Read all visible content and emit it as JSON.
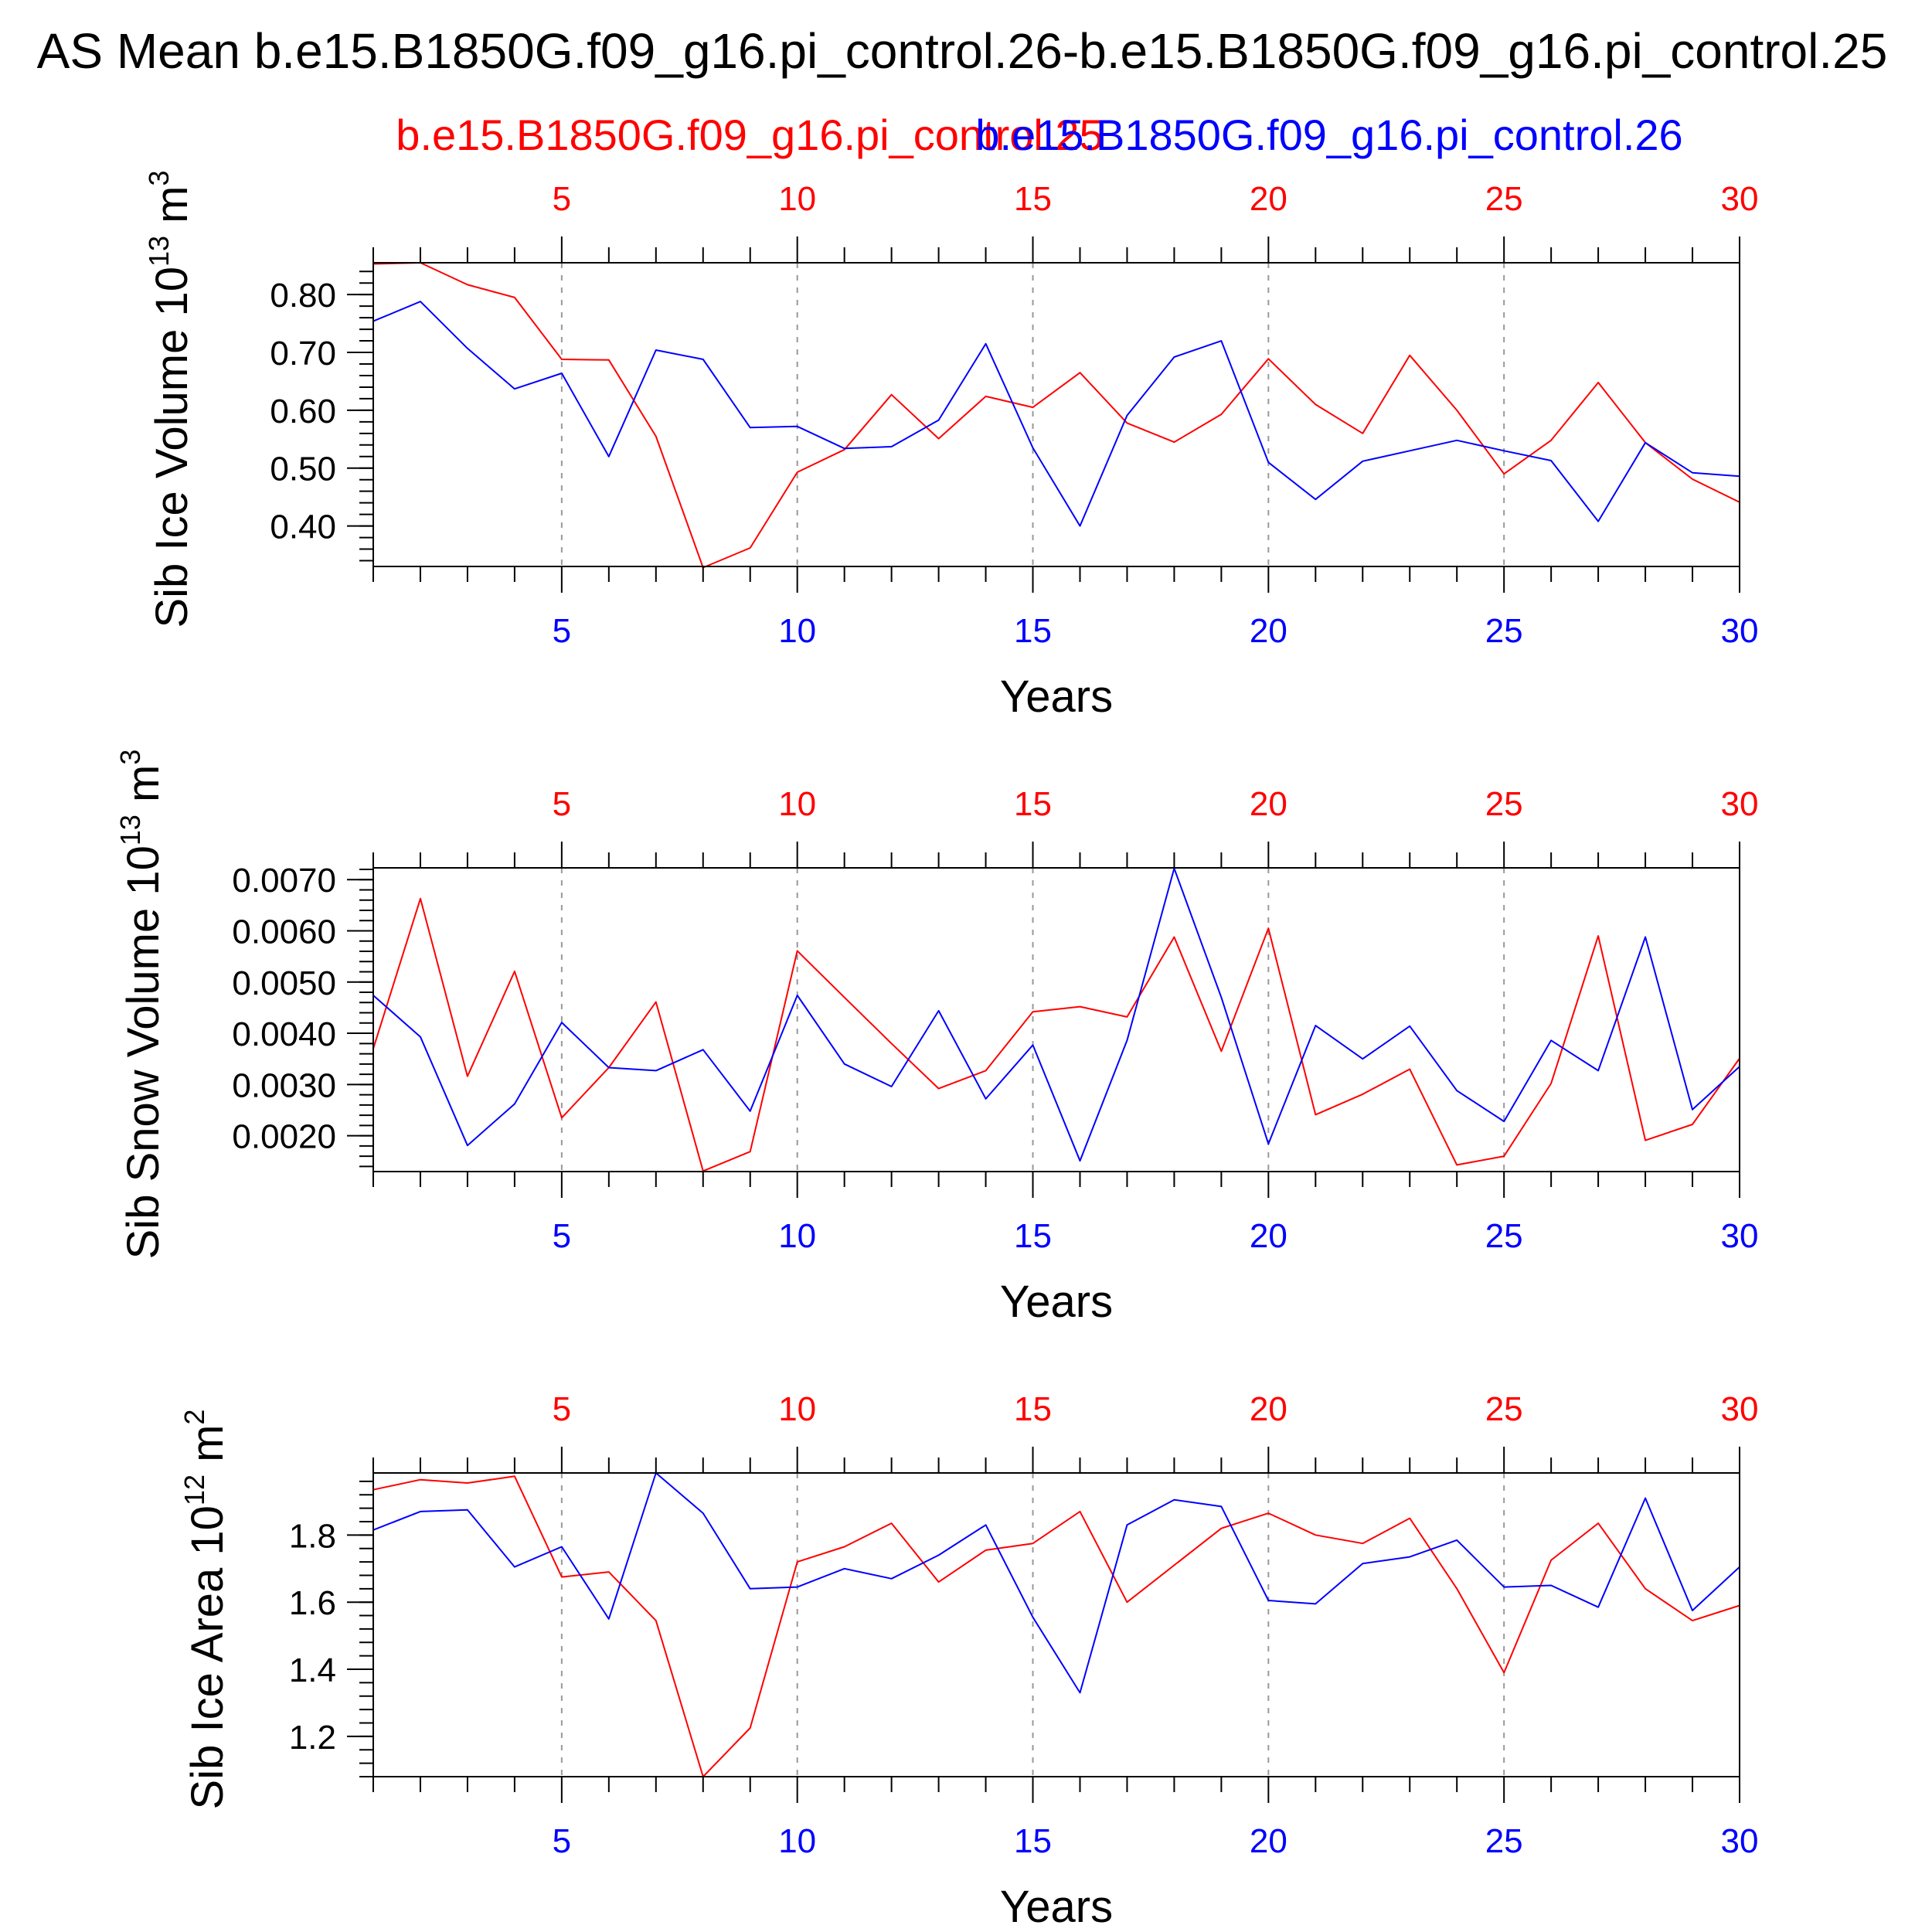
{
  "title": "AS Mean b.e15.B1850G.f09_g16.pi_control.26-b.e15.B1850G.f09_g16.pi_control.25",
  "colors": {
    "series_a": "#ff0000",
    "series_b": "#0000ff",
    "axis": "#000000",
    "grid": "#999999"
  },
  "series_names": [
    "b.e15.B1850G.f09_g16.pi_control.25",
    "b.e15.B1850G.f09_g16.pi_control.26"
  ],
  "chart_data": [
    {
      "type": "line",
      "ylabel_main": "Sib Ice Volume 10",
      "ylabel_exp": "13",
      "ylabel_unit": " m",
      "ylabel_unit_exp": "3",
      "xlabel": "Years",
      "xlim": [
        1,
        30
      ],
      "ylim": [
        0.33,
        0.855
      ],
      "x_ticks": [
        "5",
        "10",
        "15",
        "20",
        "25",
        "30"
      ],
      "y_ticks": [
        "0.80",
        "0.70",
        "0.60",
        "0.50",
        "0.40"
      ],
      "y_tick_values": [
        0.8,
        0.7,
        0.6,
        0.5,
        0.4
      ],
      "y_minor_step": 0.02,
      "grid": "vertical dashed at x ticks",
      "x": [
        1,
        2,
        3,
        4,
        5,
        6,
        7,
        8,
        9,
        10,
        11,
        12,
        13,
        14,
        15,
        16,
        17,
        18,
        19,
        20,
        21,
        22,
        23,
        24,
        25,
        26,
        27,
        28,
        29,
        30
      ],
      "series": [
        {
          "values": [
            0.853,
            0.855,
            0.817,
            0.795,
            0.688,
            0.687,
            0.555,
            0.328,
            0.362,
            0.493,
            0.532,
            0.627,
            0.551,
            0.624,
            0.605,
            0.665,
            0.578,
            0.545,
            0.593,
            0.689,
            0.61,
            0.56,
            0.695,
            0.6,
            0.49,
            0.548,
            0.648,
            0.544,
            0.481,
            0.441
          ]
        },
        {
          "values": [
            0.754,
            0.788,
            0.707,
            0.637,
            0.664,
            0.52,
            0.704,
            0.688,
            0.57,
            0.572,
            0.534,
            0.537,
            0.583,
            0.715,
            0.535,
            0.4,
            0.591,
            0.692,
            0.72,
            0.51,
            0.446,
            0.512,
            0.53,
            0.548,
            0.53,
            0.513,
            0.408,
            0.544,
            0.492,
            0.486
          ]
        }
      ]
    },
    {
      "type": "line",
      "ylabel_main": "Sib Snow Volume 10",
      "ylabel_exp": "13",
      "ylabel_unit": " m",
      "ylabel_unit_exp": "3",
      "xlabel": "Years",
      "xlim": [
        1,
        30
      ],
      "ylim": [
        0.0013,
        0.00723
      ],
      "x_ticks": [
        "5",
        "10",
        "15",
        "20",
        "25",
        "30"
      ],
      "y_ticks": [
        "0.0070",
        "0.0060",
        "0.0050",
        "0.0040",
        "0.0030",
        "0.0020"
      ],
      "y_tick_values": [
        0.007,
        0.006,
        0.005,
        0.004,
        0.003,
        0.002
      ],
      "y_minor_step": 0.0002,
      "grid": "vertical dashed at x ticks",
      "x": [
        1,
        2,
        3,
        4,
        5,
        6,
        7,
        8,
        9,
        10,
        11,
        12,
        13,
        14,
        15,
        16,
        17,
        18,
        19,
        20,
        21,
        22,
        23,
        24,
        25,
        26,
        27,
        28,
        29,
        30
      ],
      "series": [
        {
          "values": [
            0.0037,
            0.00663,
            0.00316,
            0.00521,
            0.00235,
            0.00333,
            0.00461,
            0.00131,
            0.00169,
            0.00561,
            0.0047,
            0.0038,
            0.00292,
            0.00327,
            0.00442,
            0.00452,
            0.00432,
            0.00588,
            0.00365,
            0.00605,
            0.00241,
            0.00281,
            0.0033,
            0.00143,
            0.0016,
            0.00302,
            0.0059,
            0.00191,
            0.00222,
            0.00351
          ]
        },
        {
          "values": [
            0.00474,
            0.00393,
            0.00181,
            0.00262,
            0.00421,
            0.00333,
            0.00327,
            0.00368,
            0.00248,
            0.00474,
            0.0034,
            0.00296,
            0.00444,
            0.00272,
            0.00377,
            0.00151,
            0.00386,
            0.00722,
            0.0047,
            0.00184,
            0.00415,
            0.0035,
            0.00414,
            0.00288,
            0.00228,
            0.00386,
            0.00327,
            0.00588,
            0.00251,
            0.00335
          ]
        }
      ]
    },
    {
      "type": "line",
      "ylabel_main": "Sib Ice Area 10",
      "ylabel_exp": "12",
      "ylabel_unit": " m",
      "ylabel_unit_exp": "2",
      "xlabel": "Years",
      "xlim": [
        1,
        30
      ],
      "ylim": [
        1.08,
        1.985
      ],
      "x_ticks": [
        "5",
        "10",
        "15",
        "20",
        "25",
        "30"
      ],
      "y_ticks": [
        "1.8",
        "1.6",
        "1.4",
        "1.2"
      ],
      "y_tick_values": [
        1.8,
        1.6,
        1.4,
        1.2
      ],
      "y_minor_step": 0.04,
      "grid": "vertical dashed at x ticks",
      "x": [
        1,
        2,
        3,
        4,
        5,
        6,
        7,
        8,
        9,
        10,
        11,
        12,
        13,
        14,
        15,
        16,
        17,
        18,
        19,
        20,
        21,
        22,
        23,
        24,
        25,
        26,
        27,
        28,
        29,
        30
      ],
      "series": [
        {
          "values": [
            1.935,
            1.965,
            1.955,
            1.975,
            1.675,
            1.69,
            1.545,
            1.08,
            1.225,
            1.72,
            1.765,
            1.835,
            1.66,
            1.755,
            1.775,
            1.87,
            1.6,
            1.71,
            1.82,
            1.865,
            1.8,
            1.775,
            1.85,
            1.64,
            1.39,
            1.725,
            1.835,
            1.64,
            1.545,
            1.59
          ]
        },
        {
          "values": [
            1.815,
            1.87,
            1.875,
            1.705,
            1.765,
            1.55,
            1.985,
            1.865,
            1.64,
            1.645,
            1.7,
            1.67,
            1.74,
            1.83,
            1.555,
            1.33,
            1.83,
            1.905,
            1.885,
            1.605,
            1.595,
            1.715,
            1.735,
            1.785,
            1.645,
            1.65,
            1.585,
            1.91,
            1.575,
            1.705
          ]
        }
      ]
    }
  ]
}
